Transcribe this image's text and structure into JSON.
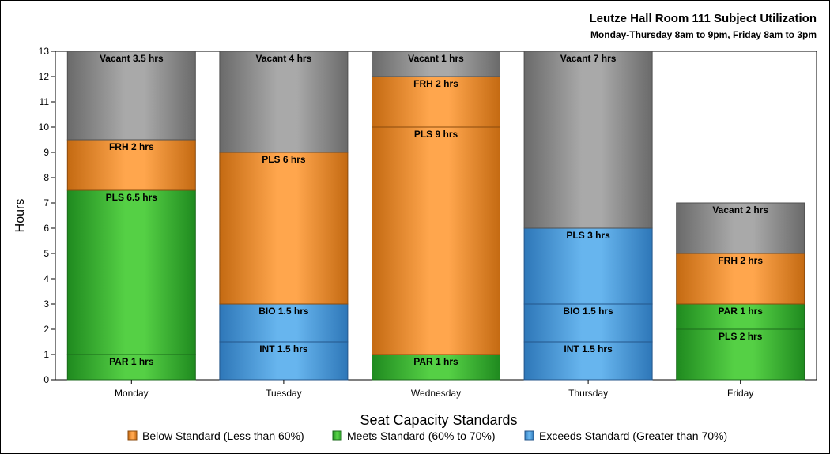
{
  "chart_data": {
    "type": "bar",
    "stacked": true,
    "title": "Leutze Hall Room 111 Subject Utilization",
    "subtitle": "Monday-Thursday 8am to 9pm, Friday 8am to 3pm",
    "xlabel": "",
    "ylabel": "Hours",
    "ylim": [
      0,
      13
    ],
    "yticks": [
      0,
      1,
      2,
      3,
      4,
      5,
      6,
      7,
      8,
      9,
      10,
      11,
      12,
      13
    ],
    "categories": [
      "Monday",
      "Tuesday",
      "Wednesday",
      "Thursday",
      "Friday"
    ],
    "bars": [
      {
        "day": "Monday",
        "segments": [
          {
            "label": "PAR 1 hrs",
            "value": 1,
            "standard": "meets"
          },
          {
            "label": "PLS 6.5 hrs",
            "value": 6.5,
            "standard": "meets"
          },
          {
            "label": "FRH 2 hrs",
            "value": 2,
            "standard": "below"
          },
          {
            "label": "Vacant 3.5 hrs",
            "value": 3.5,
            "standard": "vacant"
          }
        ]
      },
      {
        "day": "Tuesday",
        "segments": [
          {
            "label": "INT 1.5 hrs",
            "value": 1.5,
            "standard": "exceeds"
          },
          {
            "label": "BIO 1.5 hrs",
            "value": 1.5,
            "standard": "exceeds"
          },
          {
            "label": "PLS 6 hrs",
            "value": 6,
            "standard": "below"
          },
          {
            "label": "Vacant 4 hrs",
            "value": 4,
            "standard": "vacant"
          }
        ]
      },
      {
        "day": "Wednesday",
        "segments": [
          {
            "label": "PAR 1 hrs",
            "value": 1,
            "standard": "meets"
          },
          {
            "label": "PLS 9 hrs",
            "value": 9,
            "standard": "below"
          },
          {
            "label": "FRH 2 hrs",
            "value": 2,
            "standard": "below"
          },
          {
            "label": "Vacant 1 hrs",
            "value": 1,
            "standard": "vacant"
          }
        ]
      },
      {
        "day": "Thursday",
        "segments": [
          {
            "label": "INT 1.5 hrs",
            "value": 1.5,
            "standard": "exceeds"
          },
          {
            "label": "BIO 1.5 hrs",
            "value": 1.5,
            "standard": "exceeds"
          },
          {
            "label": "PLS 3 hrs",
            "value": 3,
            "standard": "exceeds"
          },
          {
            "label": "Vacant 7 hrs",
            "value": 7,
            "standard": "vacant"
          }
        ]
      },
      {
        "day": "Friday",
        "segments": [
          {
            "label": "PLS 2 hrs",
            "value": 2,
            "standard": "meets"
          },
          {
            "label": "PAR 1 hrs",
            "value": 1,
            "standard": "meets"
          },
          {
            "label": "FRH 2 hrs",
            "value": 2,
            "standard": "below"
          },
          {
            "label": "Vacant 2 hrs",
            "value": 2,
            "standard": "vacant"
          }
        ]
      }
    ],
    "legend": {
      "title": "Seat Capacity Standards",
      "position": "bottom",
      "items": [
        {
          "key": "below",
          "label": "Below Standard (Less than 60%)"
        },
        {
          "key": "meets",
          "label": "Meets Standard (60% to 70%)"
        },
        {
          "key": "exceeds",
          "label": "Exceeds Standard (Greater than 70%)"
        }
      ]
    },
    "colors": {
      "below": {
        "light": "#FFA64D",
        "dark": "#C46A12",
        "line": "#8A4A0C"
      },
      "meets": {
        "light": "#55D045",
        "dark": "#1F8A1F",
        "line": "#1B6A1B"
      },
      "exceeds": {
        "light": "#67B5EE",
        "dark": "#2E77B8",
        "line": "#24568A"
      },
      "vacant": {
        "light": "#A9A9A9",
        "dark": "#6A6A6A",
        "line": "#505050"
      }
    },
    "grid": false
  }
}
